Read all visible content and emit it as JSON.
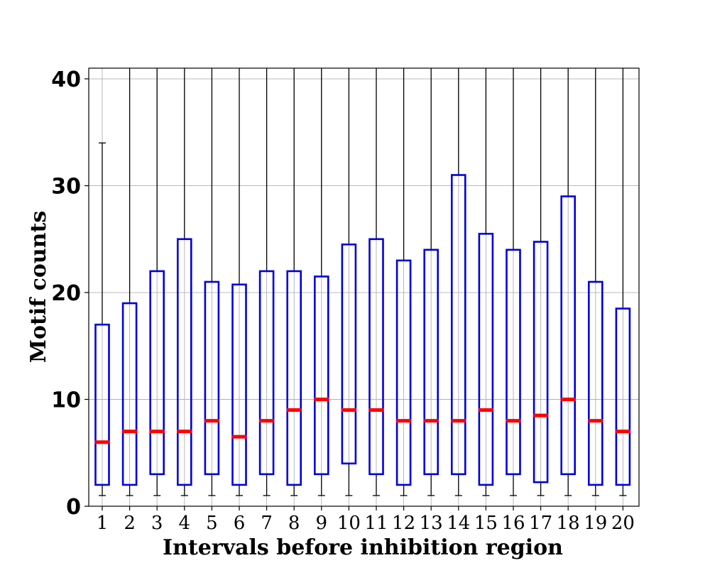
{
  "chart_data": {
    "type": "box",
    "title": "",
    "xlabel": "Intervals before inhibition region",
    "ylabel": "Motif counts",
    "ylim": [
      0,
      41
    ],
    "yticks": [
      0,
      10,
      20,
      30,
      40
    ],
    "grid": true,
    "categories": [
      "1",
      "2",
      "3",
      "4",
      "5",
      "6",
      "7",
      "8",
      "9",
      "10",
      "11",
      "12",
      "13",
      "14",
      "15",
      "16",
      "17",
      "18",
      "19",
      "20"
    ],
    "boxes": [
      {
        "category": "1",
        "whisker_low": 1,
        "q1": 2,
        "median": 6,
        "q3": 17,
        "whisker_high": 34
      },
      {
        "category": "2",
        "whisker_low": 1,
        "q1": 2,
        "median": 7,
        "q3": 19,
        "whisker_high": 41
      },
      {
        "category": "3",
        "whisker_low": 1,
        "q1": 3,
        "median": 7,
        "q3": 22,
        "whisker_high": 41
      },
      {
        "category": "4",
        "whisker_low": 1,
        "q1": 2,
        "median": 7,
        "q3": 25,
        "whisker_high": 41
      },
      {
        "category": "5",
        "whisker_low": 1,
        "q1": 3,
        "median": 8,
        "q3": 21,
        "whisker_high": 41
      },
      {
        "category": "6",
        "whisker_low": 1,
        "q1": 2,
        "median": 6.5,
        "q3": 20.75,
        "whisker_high": 41
      },
      {
        "category": "7",
        "whisker_low": 1,
        "q1": 3,
        "median": 8,
        "q3": 22,
        "whisker_high": 41
      },
      {
        "category": "8",
        "whisker_low": 1,
        "q1": 2,
        "median": 9,
        "q3": 22,
        "whisker_high": 41
      },
      {
        "category": "9",
        "whisker_low": 1,
        "q1": 3,
        "median": 10,
        "q3": 21.5,
        "whisker_high": 41
      },
      {
        "category": "10",
        "whisker_low": 1,
        "q1": 4,
        "median": 9,
        "q3": 24.5,
        "whisker_high": 41
      },
      {
        "category": "11",
        "whisker_low": 1,
        "q1": 3,
        "median": 9,
        "q3": 25,
        "whisker_high": 41
      },
      {
        "category": "12",
        "whisker_low": 1,
        "q1": 2,
        "median": 8,
        "q3": 23,
        "whisker_high": 41
      },
      {
        "category": "13",
        "whisker_low": 1,
        "q1": 3,
        "median": 8,
        "q3": 24,
        "whisker_high": 41
      },
      {
        "category": "14",
        "whisker_low": 1,
        "q1": 3,
        "median": 8,
        "q3": 31,
        "whisker_high": 41
      },
      {
        "category": "15",
        "whisker_low": 1,
        "q1": 2,
        "median": 9,
        "q3": 25.5,
        "whisker_high": 41
      },
      {
        "category": "16",
        "whisker_low": 1,
        "q1": 3,
        "median": 8,
        "q3": 24,
        "whisker_high": 41
      },
      {
        "category": "17",
        "whisker_low": 1,
        "q1": 2.25,
        "median": 8.5,
        "q3": 24.75,
        "whisker_high": 41
      },
      {
        "category": "18",
        "whisker_low": 1,
        "q1": 3,
        "median": 10,
        "q3": 29,
        "whisker_high": 41
      },
      {
        "category": "19",
        "whisker_low": 1,
        "q1": 2,
        "median": 8,
        "q3": 21,
        "whisker_high": 41
      },
      {
        "category": "20",
        "whisker_low": 1,
        "q1": 2,
        "median": 7,
        "q3": 18.5,
        "whisker_high": 41
      }
    ],
    "colors": {
      "box": "#0000dd",
      "median": "#ff0000",
      "whisker": "#000000",
      "grid": "#b0b0b0",
      "axis": "#000000"
    }
  }
}
